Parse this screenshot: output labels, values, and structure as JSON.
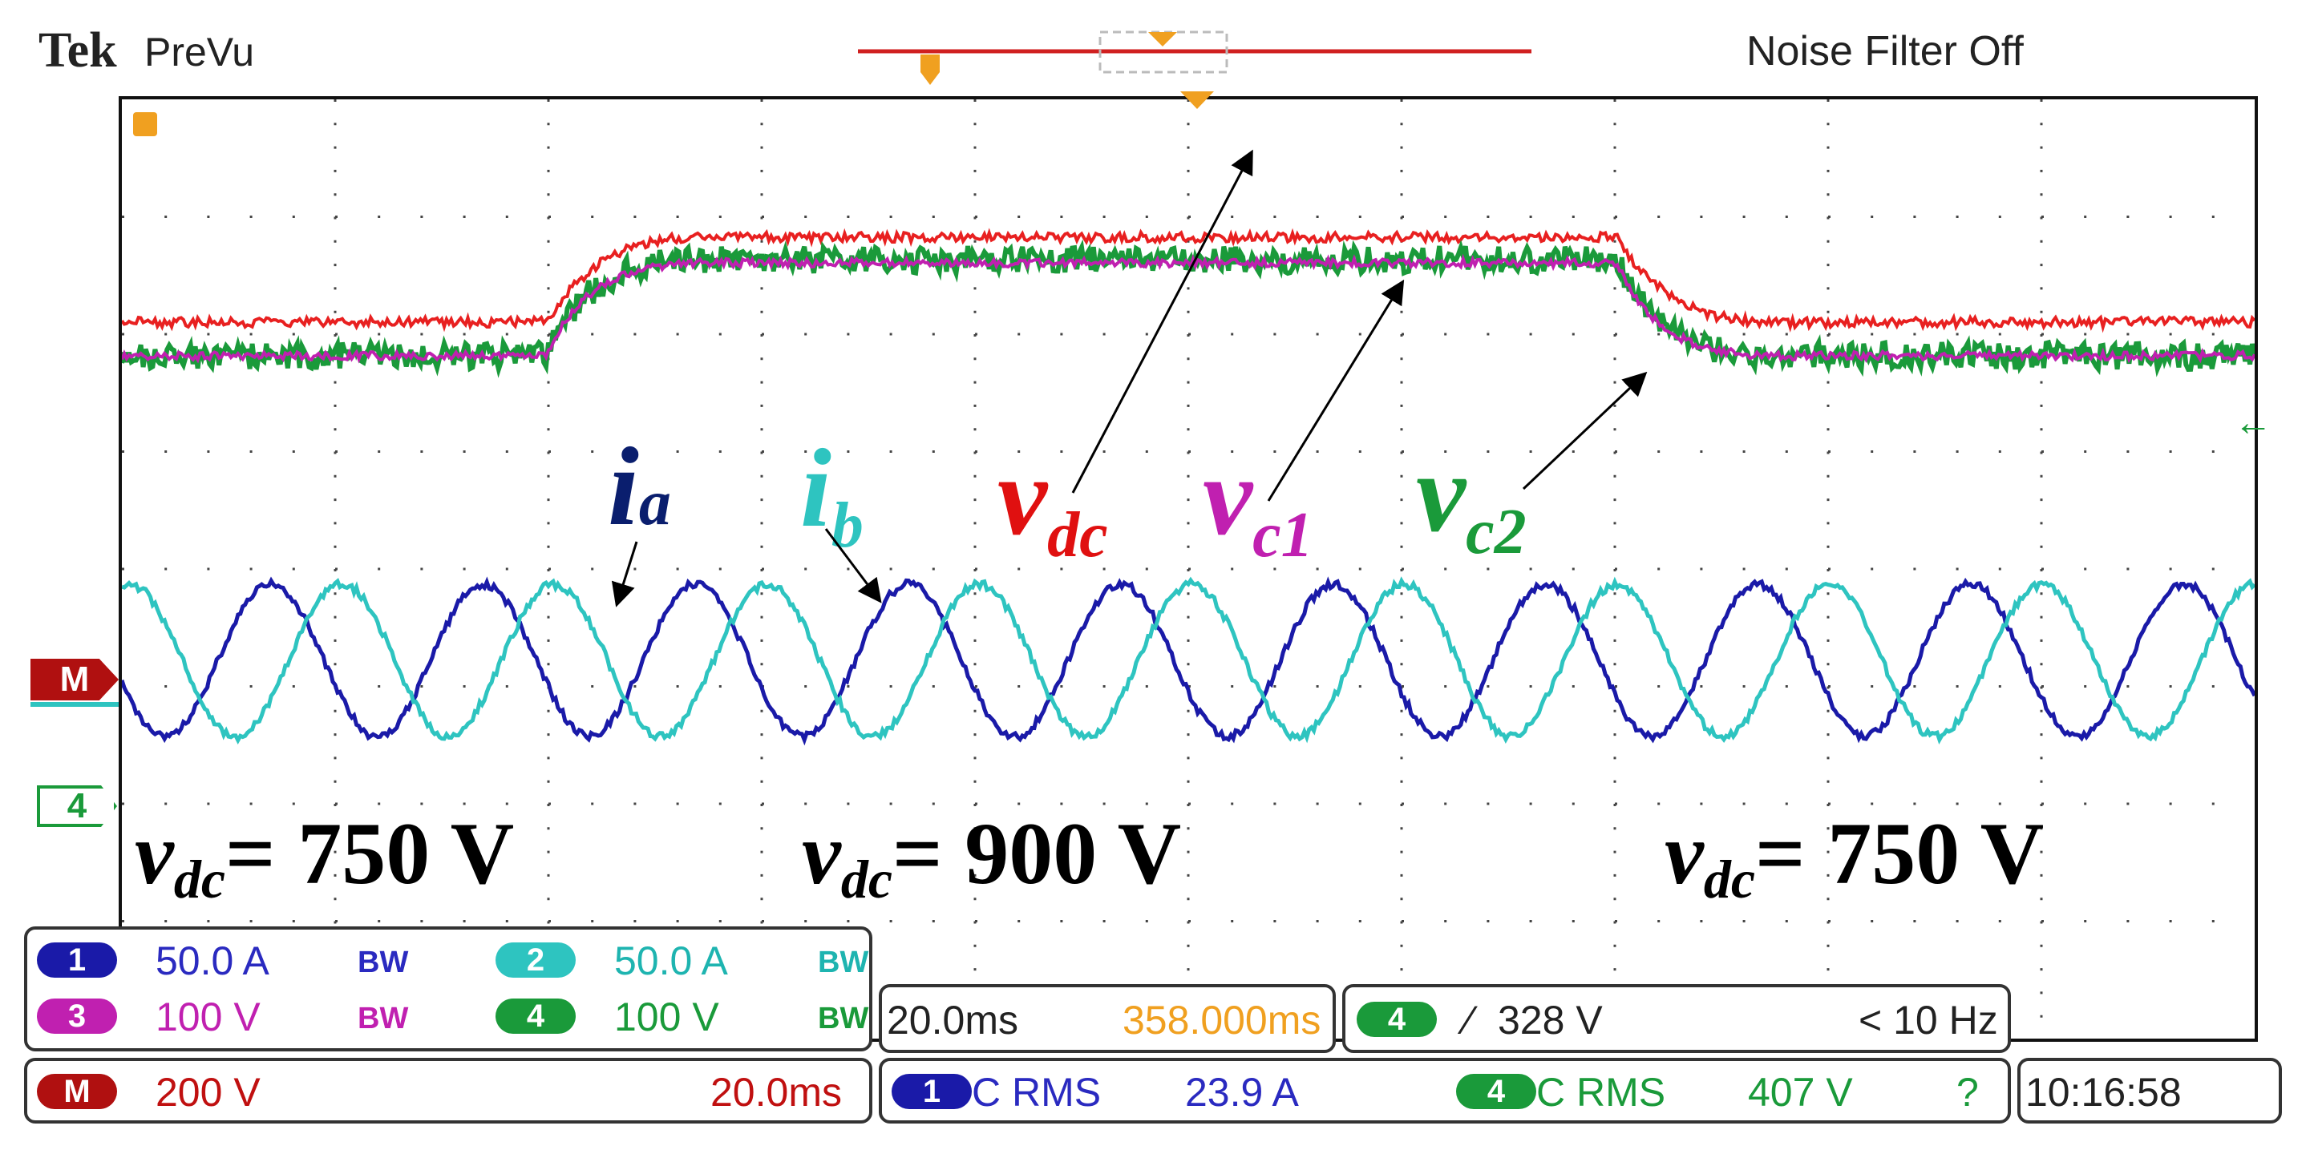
{
  "header": {
    "brand": "Tek",
    "mode": "PreVu",
    "noise_filter": "Noise Filter Off"
  },
  "colors": {
    "ch1": "#1a1aa8",
    "ch2": "#2ec4c0",
    "ch3": "#c020b0",
    "ch4": "#1a9a3a",
    "math": "#b01010",
    "vdc": "#e82020",
    "orange": "#f0a020"
  },
  "side_markers": {
    "math": "M",
    "ch4": "4"
  },
  "labels": {
    "ia_main": "i",
    "ia_sub": "a",
    "ib_main": "i",
    "ib_sub": "b",
    "vdc_main": "v",
    "vdc_sub": "dc",
    "vc1_main": "v",
    "vc1_sub": "c1",
    "vc2_main": "v",
    "vc2_sub": "c2"
  },
  "annotations": [
    {
      "var": "v",
      "sub": "dc",
      "text": "= 750 V"
    },
    {
      "var": "v",
      "sub": "dc",
      "text": "= 900 V"
    },
    {
      "var": "v",
      "sub": "dc",
      "text": "= 750 V"
    }
  ],
  "channels": {
    "ch1": {
      "num": "1",
      "scale": "50.0 A",
      "bw": "BW"
    },
    "ch2": {
      "num": "2",
      "scale": "50.0 A",
      "bw": "BW"
    },
    "ch3": {
      "num": "3",
      "scale": "100 V",
      "bw": "BW"
    },
    "ch4": {
      "num": "4",
      "scale": "100 V",
      "bw": "BW"
    },
    "math": {
      "num": "M",
      "scale": "200 V",
      "time": "20.0ms"
    }
  },
  "timebase": {
    "scale": "20.0ms",
    "position": "358.000ms"
  },
  "trigger": {
    "source": "4",
    "slope": "∕",
    "level": "328 V",
    "freq": "< 10 Hz"
  },
  "measurements": [
    {
      "source": "1",
      "type": "C RMS",
      "value": "23.9 A"
    },
    {
      "source": "4",
      "type": "C RMS",
      "value": "407 V",
      "status": "?"
    }
  ],
  "clock": "10:16:58"
}
